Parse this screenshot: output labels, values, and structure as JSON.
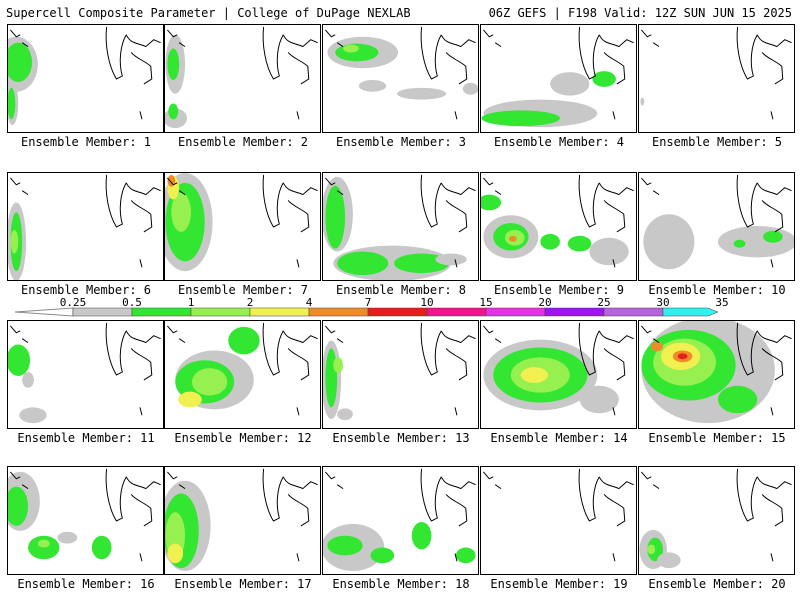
{
  "header": {
    "left": "Supercell Composite Parameter | College of DuPage NEXLAB",
    "right": "06Z GEFS | F198 Valid: 12Z SUN JUN 15 2025"
  },
  "colorbar": {
    "labels": [
      "0.25",
      "0.5",
      "1",
      "2",
      "4",
      "7",
      "10",
      "15",
      "20",
      "25",
      "30",
      "35"
    ],
    "colors": [
      "#c8c8c8",
      "#32e632",
      "#96f050",
      "#f0f050",
      "#f08c28",
      "#e61e1e",
      "#f0148c",
      "#e632e6",
      "#a014f0",
      "#b464dc",
      "#32f0f0"
    ]
  },
  "members": [
    {
      "label": "Ensemble Member: 1"
    },
    {
      "label": "Ensemble Member: 2"
    },
    {
      "label": "Ensemble Member: 3"
    },
    {
      "label": "Ensemble Member: 4"
    },
    {
      "label": "Ensemble Member: 5"
    },
    {
      "label": "Ensemble Member: 6"
    },
    {
      "label": "Ensemble Member: 7"
    },
    {
      "label": "Ensemble Member: 8"
    },
    {
      "label": "Ensemble Member: 9"
    },
    {
      "label": "Ensemble Member: 10"
    },
    {
      "label": "Ensemble Member: 11"
    },
    {
      "label": "Ensemble Member: 12"
    },
    {
      "label": "Ensemble Member: 13"
    },
    {
      "label": "Ensemble Member: 14"
    },
    {
      "label": "Ensemble Member: 15"
    },
    {
      "label": "Ensemble Member: 16"
    },
    {
      "label": "Ensemble Member: 17"
    },
    {
      "label": "Ensemble Member: 18"
    },
    {
      "label": "Ensemble Member: 19"
    },
    {
      "label": "Ensemble Member: 20"
    }
  ]
}
